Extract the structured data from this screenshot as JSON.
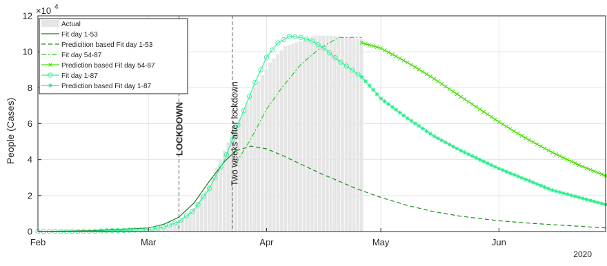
{
  "chart_data": {
    "type": "line",
    "title": "",
    "xlabel": "",
    "ylabel": "People (Cases)",
    "y_exponent_label": "×10",
    "y_exponent_power": "4",
    "year_label": "2020",
    "xlim": [
      "2020-02-01",
      "2020-06-29"
    ],
    "ylim": [
      0,
      12
    ],
    "grid": true,
    "legend_position": "top-left",
    "x_ticks": [
      {
        "label": "Feb",
        "date": "2020-02-01"
      },
      {
        "label": "Mar",
        "date": "2020-03-01"
      },
      {
        "label": "Apr",
        "date": "2020-04-01"
      },
      {
        "label": "May",
        "date": "2020-05-01"
      },
      {
        "label": "Jun",
        "date": "2020-06-01"
      }
    ],
    "y_ticks": [
      0,
      2,
      4,
      6,
      8,
      10,
      12
    ],
    "annotations": [
      {
        "text": "LOCKDOWN",
        "date": "2020-03-09",
        "bold": true
      },
      {
        "text": "Two weeks after lockdown",
        "date": "2020-03-23",
        "bold": false
      }
    ],
    "series": [
      {
        "name": "Actual",
        "style": "bar",
        "color": "#e6e6e6",
        "x": [
          "2020-02-01",
          "2020-02-15",
          "2020-03-01",
          "2020-03-05",
          "2020-03-09",
          "2020-03-13",
          "2020-03-17",
          "2020-03-21",
          "2020-03-25",
          "2020-03-29",
          "2020-04-02",
          "2020-04-06",
          "2020-04-10",
          "2020-04-14",
          "2020-04-18",
          "2020-04-22",
          "2020-04-26"
        ],
        "y": [
          0,
          0,
          0.05,
          0.2,
          0.5,
          1.3,
          2.6,
          4.5,
          6.3,
          8.0,
          9.4,
          10.3,
          10.6,
          10.9,
          10.9,
          10.8,
          10.7
        ]
      },
      {
        "name": "Fit day 1-53",
        "style": "solid",
        "color": "#1a7a1a",
        "x": [
          "2020-02-01",
          "2020-02-15",
          "2020-03-01",
          "2020-03-05",
          "2020-03-09",
          "2020-03-13",
          "2020-03-17",
          "2020-03-21",
          "2020-03-24"
        ],
        "y": [
          0,
          0.05,
          0.2,
          0.4,
          0.8,
          1.6,
          2.8,
          3.9,
          4.5
        ]
      },
      {
        "name": "Predicition based Fit day 1-53",
        "style": "dashed",
        "color": "#1a8a1a",
        "x": [
          "2020-03-24",
          "2020-03-28",
          "2020-04-01",
          "2020-04-05",
          "2020-04-10",
          "2020-04-15",
          "2020-04-20",
          "2020-04-25",
          "2020-05-01",
          "2020-05-08",
          "2020-05-15",
          "2020-05-22",
          "2020-06-01",
          "2020-06-10",
          "2020-06-20",
          "2020-06-29"
        ],
        "y": [
          4.5,
          4.75,
          4.6,
          4.25,
          3.75,
          3.25,
          2.8,
          2.35,
          1.9,
          1.45,
          1.1,
          0.85,
          0.6,
          0.45,
          0.32,
          0.2
        ]
      },
      {
        "name": "Fit day 54-87",
        "style": "dashdot",
        "color": "#22cc22",
        "x": [
          "2020-03-24",
          "2020-03-28",
          "2020-04-01",
          "2020-04-05",
          "2020-04-10",
          "2020-04-15",
          "2020-04-20",
          "2020-04-26"
        ],
        "y": [
          3.8,
          5.2,
          6.8,
          8.0,
          9.3,
          10.2,
          10.8,
          10.8
        ]
      },
      {
        "name": "Prediction based Fit day 54-87",
        "style": "line-x",
        "color": "#44dd00",
        "x": [
          "2020-04-26",
          "2020-05-01",
          "2020-05-08",
          "2020-05-15",
          "2020-05-22",
          "2020-06-01",
          "2020-06-08",
          "2020-06-15",
          "2020-06-22",
          "2020-06-29"
        ],
        "y": [
          10.5,
          10.2,
          9.4,
          8.5,
          7.5,
          6.1,
          5.2,
          4.4,
          3.7,
          3.1
        ]
      },
      {
        "name": "Fit day 1-87",
        "style": "line-o",
        "color": "#33ee99",
        "x": [
          "2020-02-01",
          "2020-02-15",
          "2020-03-01",
          "2020-03-05",
          "2020-03-09",
          "2020-03-13",
          "2020-03-17",
          "2020-03-21",
          "2020-03-25",
          "2020-03-29",
          "2020-04-01",
          "2020-04-04",
          "2020-04-07",
          "2020-04-10",
          "2020-04-13",
          "2020-04-16",
          "2020-04-20",
          "2020-04-26"
        ],
        "y": [
          0,
          0.02,
          0.1,
          0.25,
          0.55,
          1.2,
          2.4,
          4.0,
          6.2,
          8.3,
          9.7,
          10.5,
          10.85,
          10.8,
          10.6,
          10.2,
          9.5,
          8.6
        ]
      },
      {
        "name": "Prediction based Fit day 1-87",
        "style": "line-star",
        "color": "#22ee88",
        "x": [
          "2020-04-26",
          "2020-05-01",
          "2020-05-08",
          "2020-05-15",
          "2020-05-22",
          "2020-06-01",
          "2020-06-08",
          "2020-06-15",
          "2020-06-22",
          "2020-06-29"
        ],
        "y": [
          8.6,
          7.4,
          6.3,
          5.3,
          4.5,
          3.5,
          2.9,
          2.3,
          1.9,
          1.5
        ]
      }
    ]
  }
}
